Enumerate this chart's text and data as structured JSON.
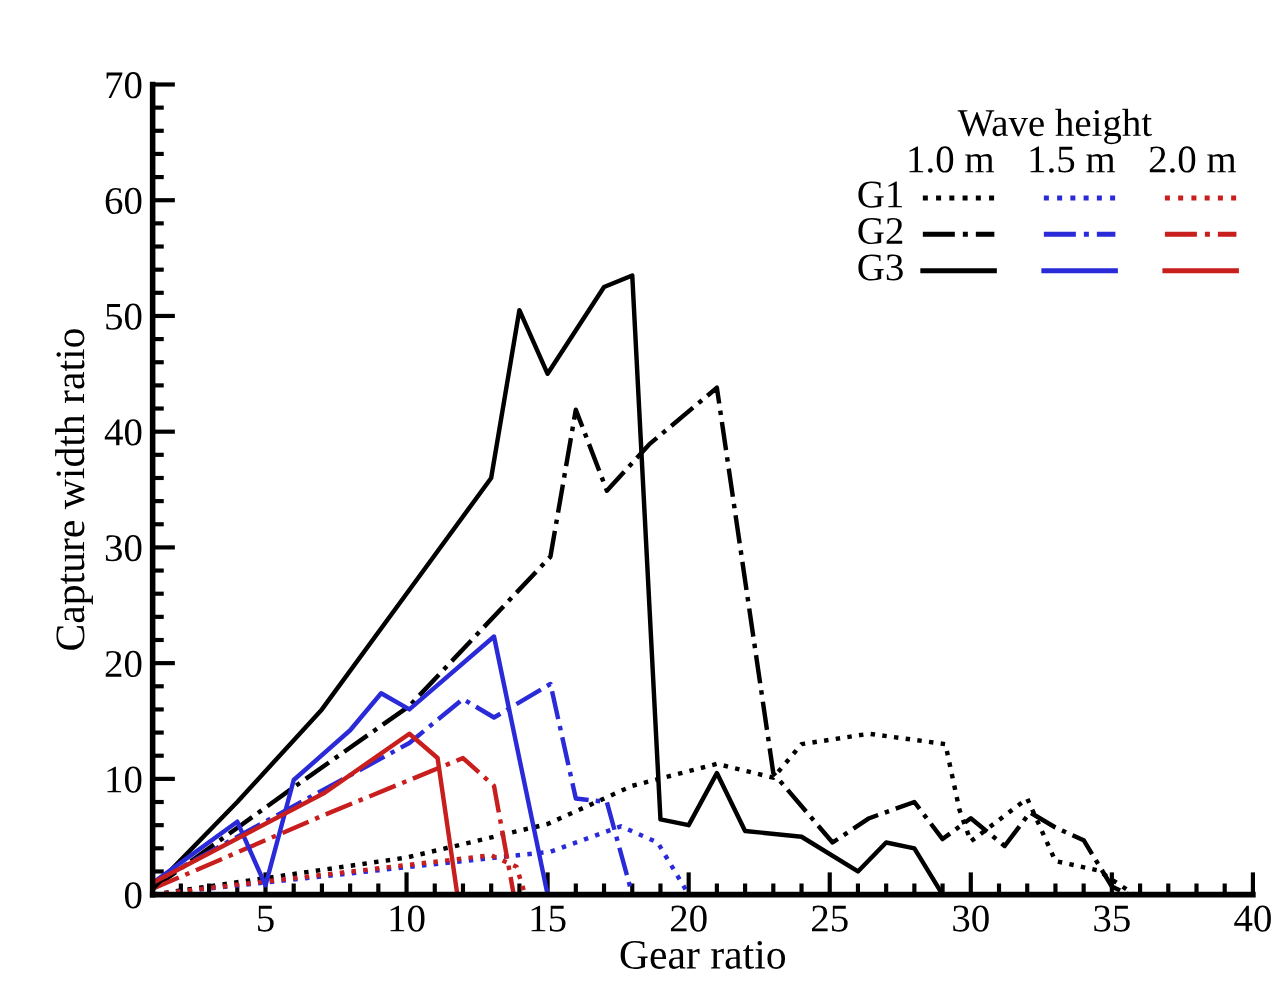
{
  "chart_data": {
    "type": "line",
    "xlabel": "Gear ratio",
    "ylabel": "Capture width ratio",
    "legend_title": "Wave height",
    "annotations": [
      "1.0 m",
      "1.5 m",
      "2.0 m"
    ],
    "xlim": [
      1,
      40
    ],
    "xticks": [
      5,
      10,
      15,
      20,
      25,
      30,
      35,
      40
    ],
    "ylim": [
      0,
      70
    ],
    "yticks": [
      0,
      10,
      20,
      30,
      40,
      50,
      60,
      70
    ],
    "grid": false,
    "legend": "top right",
    "marker": "none",
    "series": [
      {
        "name": "G1",
        "color": "#000000",
        "line_style": "dotted",
        "x": [
          1,
          10,
          15,
          18,
          21,
          23,
          24,
          26.4,
          29.1,
          29.6,
          30,
          32,
          33,
          34.5,
          35.8
        ],
        "values": [
          0,
          3.2,
          6.1,
          9.4,
          11.3,
          10.1,
          13,
          13.9,
          13,
          7.3,
          4.6,
          8.3,
          2.9,
          2.1,
          0
        ]
      },
      {
        "color": "#2a2ad8",
        "line_style": "dotted",
        "x": [
          1,
          15.1,
          17.6,
          18.9,
          20
        ],
        "values": [
          0,
          3.7,
          5.9,
          4.5,
          0
        ]
      },
      {
        "color": "#c81e1e",
        "line_style": "dotted",
        "x": [
          1,
          13,
          13.9,
          14.2
        ],
        "values": [
          0,
          3.4,
          2.4,
          0
        ]
      },
      {
        "name": "G2",
        "color": "#000000",
        "line_style": "dashdot",
        "x": [
          1,
          5.9,
          10.1,
          15.1,
          16,
          17.1,
          18.6,
          21,
          23,
          25.1,
          26.4,
          28,
          29,
          30,
          31.2,
          32.1,
          33,
          34,
          35,
          35.6
        ],
        "values": [
          0.5,
          9.1,
          16.3,
          29.2,
          41.9,
          34.9,
          38.9,
          43.8,
          10.5,
          4.5,
          6.6,
          8,
          4.8,
          6.6,
          4.2,
          7.1,
          5.8,
          4.7,
          0.7,
          0
        ]
      },
      {
        "color": "#2a2ad8",
        "line_style": "dashdot",
        "x": [
          1,
          10.1,
          12,
          13.1,
          15.1,
          16,
          17.1,
          18
        ],
        "values": [
          1,
          13.1,
          16.9,
          15.3,
          18.2,
          8.3,
          8,
          0
        ]
      },
      {
        "color": "#c81e1e",
        "line_style": "dashdot",
        "x": [
          1,
          7.1,
          12,
          13.1,
          13.8
        ],
        "values": [
          0.5,
          6.9,
          11.8,
          9.4,
          0
        ]
      },
      {
        "name": "G3",
        "color": "#000000",
        "line_style": "solid",
        "x": [
          1,
          4,
          7,
          10,
          13,
          14,
          15,
          17,
          18,
          19,
          20,
          21,
          22,
          24,
          26,
          27,
          28,
          29
        ],
        "values": [
          0.5,
          8,
          16,
          26,
          36,
          50.5,
          45,
          52.5,
          53.5,
          6.5,
          6,
          10.5,
          5.5,
          5,
          2,
          4.5,
          4,
          0
        ]
      },
      {
        "color": "#2a2ad8",
        "line_style": "solid",
        "x": [
          1,
          4,
          5,
          6,
          8,
          9.1,
          10.1,
          13.1,
          15
        ],
        "values": [
          1,
          6.3,
          0.8,
          9.9,
          14.2,
          17.4,
          16,
          22.3,
          0
        ]
      },
      {
        "color": "#c81e1e",
        "line_style": "solid",
        "x": [
          1,
          7.1,
          10.1,
          11.1,
          11.8
        ],
        "values": [
          1,
          8.8,
          13.9,
          11.8,
          0
        ]
      }
    ]
  }
}
